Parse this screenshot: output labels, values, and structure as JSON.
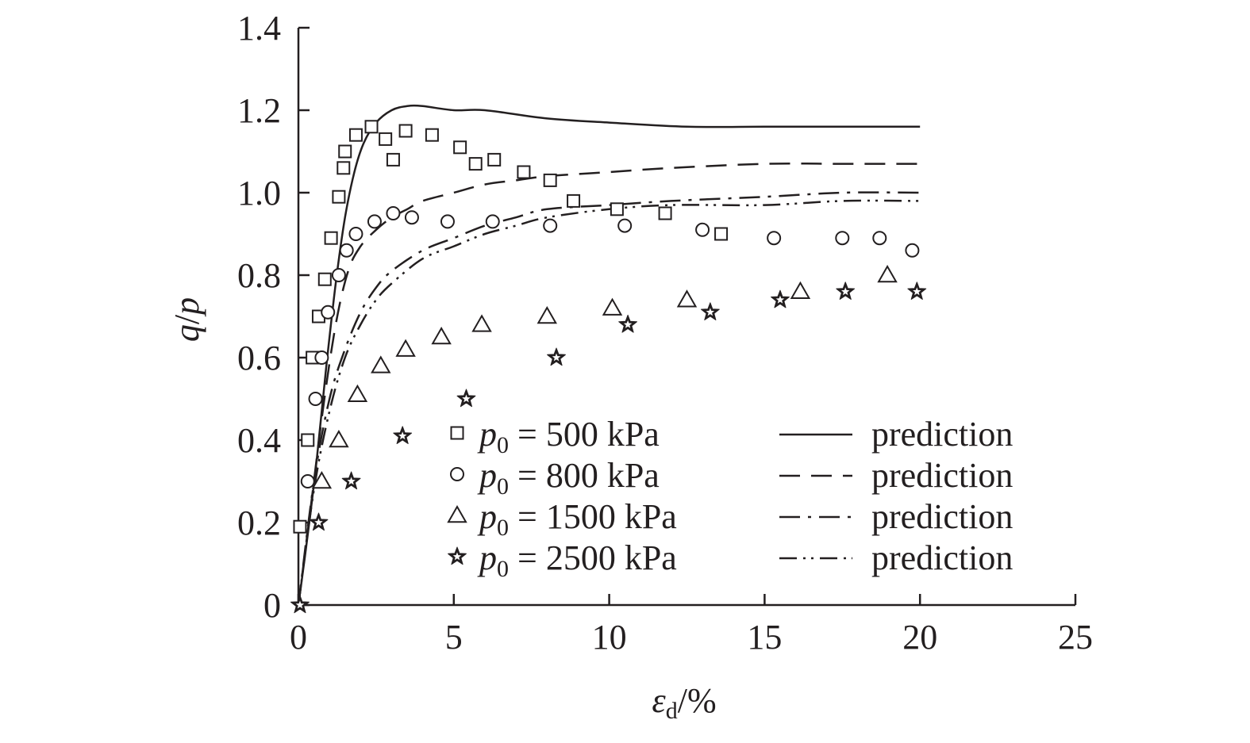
{
  "chart_data": {
    "type": "scatter",
    "title": "",
    "xlabel": "ε_d/%",
    "xlabel_parts": {
      "symbol": "ε",
      "sub": "d",
      "rest": "/%"
    },
    "ylabel": "q/p",
    "ylabel_parts": {
      "a": "q",
      "slash": "/",
      "b": "p"
    },
    "xlim": [
      0,
      25
    ],
    "ylim": [
      0,
      1.4
    ],
    "x_ticks": [
      0,
      5,
      10,
      15,
      20,
      25
    ],
    "x_tick_labels": [
      "0",
      "5",
      "10",
      "15",
      "20",
      "25"
    ],
    "y_ticks": [
      0,
      0.2,
      0.4,
      0.6,
      0.8,
      1.0,
      1.2,
      1.4
    ],
    "y_tick_labels": [
      "0",
      "0.2",
      "0.4",
      "0.6",
      "0.8",
      "1.0",
      "1.2",
      "1.4"
    ],
    "grid": false,
    "legend_position": "bottom-center",
    "colors": {
      "ink": "#231f20",
      "background": "#ffffff"
    },
    "series": [
      {
        "name": "p0 = 500 kPa",
        "legend_parts": {
          "p": "p",
          "sub": "0",
          "rest": " = 500 kPa"
        },
        "marker": "square",
        "points": [
          [
            0.05,
            0.19
          ],
          [
            0.3,
            0.4
          ],
          [
            0.45,
            0.6
          ],
          [
            0.65,
            0.7
          ],
          [
            0.85,
            0.79
          ],
          [
            1.05,
            0.89
          ],
          [
            1.3,
            0.99
          ],
          [
            1.45,
            1.06
          ],
          [
            1.5,
            1.1
          ],
          [
            1.85,
            1.14
          ],
          [
            2.35,
            1.16
          ],
          [
            2.8,
            1.13
          ],
          [
            3.05,
            1.08
          ],
          [
            3.45,
            1.15
          ],
          [
            4.3,
            1.14
          ],
          [
            5.2,
            1.11
          ],
          [
            5.7,
            1.07
          ],
          [
            6.3,
            1.08
          ],
          [
            7.25,
            1.05
          ],
          [
            8.1,
            1.03
          ],
          [
            8.85,
            0.98
          ],
          [
            10.25,
            0.96
          ],
          [
            11.8,
            0.95
          ],
          [
            13.6,
            0.9
          ]
        ]
      },
      {
        "name": "p0 = 800 kPa",
        "legend_parts": {
          "p": "p",
          "sub": "0",
          "rest": " = 800 kPa"
        },
        "marker": "circle",
        "points": [
          [
            0.3,
            0.3
          ],
          [
            0.55,
            0.5
          ],
          [
            0.75,
            0.6
          ],
          [
            0.95,
            0.71
          ],
          [
            1.3,
            0.8
          ],
          [
            1.55,
            0.86
          ],
          [
            1.85,
            0.9
          ],
          [
            2.45,
            0.93
          ],
          [
            3.05,
            0.95
          ],
          [
            3.65,
            0.94
          ],
          [
            4.8,
            0.93
          ],
          [
            6.25,
            0.93
          ],
          [
            8.1,
            0.92
          ],
          [
            10.5,
            0.92
          ],
          [
            13.0,
            0.91
          ],
          [
            15.3,
            0.89
          ],
          [
            17.5,
            0.89
          ],
          [
            18.7,
            0.89
          ],
          [
            19.75,
            0.86
          ]
        ]
      },
      {
        "name": "p0 = 1500 kPa",
        "legend_parts": {
          "p": "p",
          "sub": "0",
          "rest": " = 1500 kPa"
        },
        "marker": "triangle",
        "points": [
          [
            0.75,
            0.3
          ],
          [
            1.3,
            0.4
          ],
          [
            1.9,
            0.51
          ],
          [
            2.65,
            0.58
          ],
          [
            3.45,
            0.62
          ],
          [
            4.6,
            0.65
          ],
          [
            5.9,
            0.68
          ],
          [
            8.0,
            0.7
          ],
          [
            10.1,
            0.72
          ],
          [
            12.5,
            0.74
          ],
          [
            16.15,
            0.76
          ],
          [
            18.95,
            0.8
          ]
        ]
      },
      {
        "name": "p0 = 2500 kPa",
        "legend_parts": {
          "p": "p",
          "sub": "0",
          "rest": " = 2500 kPa"
        },
        "marker": "star",
        "points": [
          [
            0.05,
            0.0
          ],
          [
            0.65,
            0.2
          ],
          [
            1.7,
            0.3
          ],
          [
            3.35,
            0.41
          ],
          [
            5.4,
            0.5
          ],
          [
            8.3,
            0.6
          ],
          [
            10.6,
            0.68
          ],
          [
            13.25,
            0.71
          ],
          [
            15.5,
            0.74
          ],
          [
            17.6,
            0.76
          ],
          [
            19.9,
            0.76
          ]
        ]
      }
    ],
    "prediction_curves": [
      {
        "name": "prediction",
        "dash": "solid",
        "points": [
          [
            0,
            0
          ],
          [
            0.3,
            0.17
          ],
          [
            0.6,
            0.36
          ],
          [
            0.9,
            0.58
          ],
          [
            1.2,
            0.78
          ],
          [
            1.5,
            0.94
          ],
          [
            1.8,
            1.05
          ],
          [
            2.1,
            1.12
          ],
          [
            2.5,
            1.17
          ],
          [
            3.0,
            1.2
          ],
          [
            3.5,
            1.21
          ],
          [
            4.0,
            1.21
          ],
          [
            5.0,
            1.2
          ],
          [
            6.0,
            1.2
          ],
          [
            8.0,
            1.18
          ],
          [
            10.0,
            1.17
          ],
          [
            12.5,
            1.16
          ],
          [
            15.0,
            1.16
          ],
          [
            17.5,
            1.16
          ],
          [
            20.0,
            1.16
          ]
        ]
      },
      {
        "name": "prediction",
        "dash": "dashed",
        "points": [
          [
            0,
            0
          ],
          [
            0.4,
            0.24
          ],
          [
            0.8,
            0.48
          ],
          [
            1.2,
            0.68
          ],
          [
            1.6,
            0.81
          ],
          [
            2.0,
            0.87
          ],
          [
            2.5,
            0.91
          ],
          [
            3.0,
            0.94
          ],
          [
            3.5,
            0.96
          ],
          [
            4.0,
            0.98
          ],
          [
            5.0,
            1.0
          ],
          [
            6.0,
            1.02
          ],
          [
            7.0,
            1.03
          ],
          [
            8.0,
            1.04
          ],
          [
            10.0,
            1.05
          ],
          [
            12.0,
            1.06
          ],
          [
            15.0,
            1.07
          ],
          [
            17.5,
            1.07
          ],
          [
            20.0,
            1.07
          ]
        ]
      },
      {
        "name": "prediction",
        "dash": "dash-dot",
        "points": [
          [
            0,
            0
          ],
          [
            0.5,
            0.3
          ],
          [
            1.0,
            0.5
          ],
          [
            1.5,
            0.62
          ],
          [
            2.0,
            0.71
          ],
          [
            2.5,
            0.77
          ],
          [
            3.0,
            0.81
          ],
          [
            4.0,
            0.86
          ],
          [
            5.0,
            0.89
          ],
          [
            6.0,
            0.92
          ],
          [
            7.0,
            0.94
          ],
          [
            8.0,
            0.96
          ],
          [
            10.0,
            0.97
          ],
          [
            12.0,
            0.98
          ],
          [
            15.0,
            0.99
          ],
          [
            17.5,
            1.0
          ],
          [
            20.0,
            1.0
          ]
        ]
      },
      {
        "name": "prediction",
        "dash": "dash-dot-dot",
        "points": [
          [
            0,
            0
          ],
          [
            0.5,
            0.28
          ],
          [
            1.0,
            0.47
          ],
          [
            1.5,
            0.6
          ],
          [
            2.0,
            0.68
          ],
          [
            2.5,
            0.74
          ],
          [
            3.0,
            0.78
          ],
          [
            4.0,
            0.84
          ],
          [
            5.0,
            0.87
          ],
          [
            6.0,
            0.9
          ],
          [
            7.0,
            0.92
          ],
          [
            8.0,
            0.94
          ],
          [
            10.0,
            0.96
          ],
          [
            12.0,
            0.97
          ],
          [
            15.0,
            0.97
          ],
          [
            17.5,
            0.98
          ],
          [
            20.0,
            0.98
          ]
        ]
      }
    ]
  }
}
